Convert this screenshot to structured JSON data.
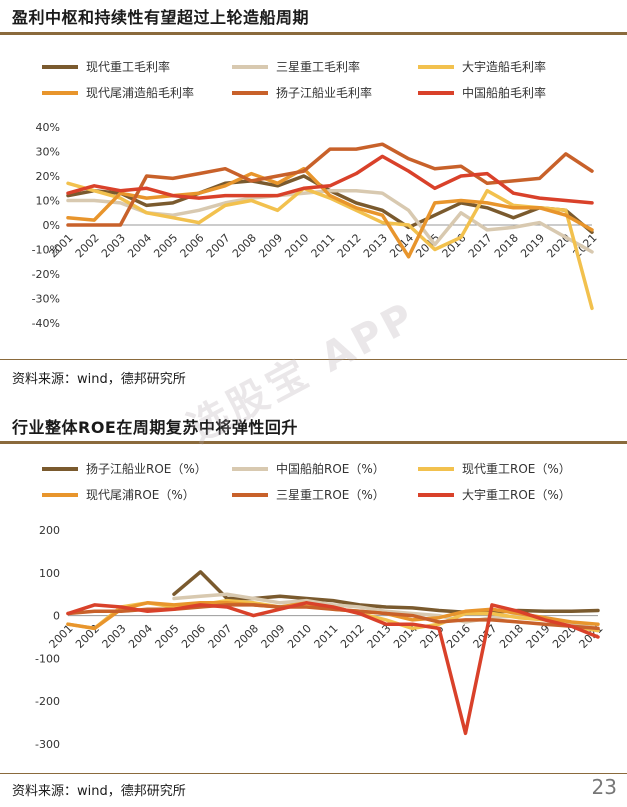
{
  "chart1": {
    "title": "盈利中枢和持续性有望超过上轮造船周期",
    "source": "资料来源：wind，德邦研究所"
  },
  "chart2": {
    "title": "行业整体ROE在周期复苏中将弹性回升",
    "source": "资料来源：wind，德邦研究所"
  },
  "watermark": "选股宝 APP",
  "page_number": "23",
  "chart_data": [
    {
      "type": "line",
      "title": "盈利中枢和持续性有望超过上轮造船周期",
      "xlabel": "",
      "ylabel": "",
      "x": [
        "2001",
        "2002",
        "2003",
        "2004",
        "2005",
        "2006",
        "2007",
        "2008",
        "2009",
        "2010",
        "2011",
        "2012",
        "2013",
        "2014",
        "2015",
        "2016",
        "2017",
        "2018",
        "2019",
        "2020",
        "2021"
      ],
      "ylim": [
        -40,
        40
      ],
      "yticks": [
        -40,
        -30,
        -20,
        -10,
        0,
        10,
        20,
        30,
        40
      ],
      "ytick_labels": [
        "-40%",
        "-30%",
        "-20%",
        "-10%",
        "0%",
        "10%",
        "20%",
        "30%",
        "40%"
      ],
      "legend_placement": "top",
      "series": [
        {
          "name": "现代重工毛利率",
          "color": "#7a5a2e",
          "values": [
            12,
            14,
            13,
            8,
            9,
            13,
            17,
            18,
            16,
            20,
            14,
            9,
            6,
            -1,
            4,
            9,
            7,
            3,
            7,
            6,
            -3
          ]
        },
        {
          "name": "三星重工毛利率",
          "color": "#d8c9b0",
          "values": [
            10,
            10,
            9,
            5,
            4,
            6,
            9,
            11,
            12,
            13,
            14,
            14,
            13,
            6,
            -8,
            5,
            -2,
            -1,
            1,
            -5,
            -11
          ]
        },
        {
          "name": "大宇造船毛利率",
          "color": "#f2c14e",
          "values": [
            17,
            14,
            11,
            5,
            3,
            1,
            8,
            10,
            6,
            15,
            11,
            6,
            1,
            0,
            -10,
            -5,
            14,
            8,
            7,
            6,
            -34
          ]
        },
        {
          "name": "现代尾浦造船毛利率",
          "color": "#e8952c",
          "values": [
            3,
            2,
            13,
            11,
            12,
            13,
            16,
            21,
            17,
            23,
            12,
            7,
            4,
            -13,
            9,
            10,
            9,
            7,
            7,
            4,
            -2
          ]
        },
        {
          "name": "扬子江船业毛利率",
          "color": "#c8612a",
          "values": [
            0,
            0,
            0,
            20,
            19,
            21,
            23,
            18,
            20,
            22,
            31,
            31,
            33,
            27,
            23,
            24,
            17,
            18,
            19,
            29,
            22
          ]
        },
        {
          "name": "中国船舶毛利率",
          "color": "#d9412a",
          "values": [
            13,
            16,
            14,
            15,
            12,
            11,
            12,
            12,
            12,
            15,
            16,
            21,
            28,
            22,
            15,
            20,
            21,
            13,
            11,
            10,
            9
          ]
        }
      ]
    },
    {
      "type": "line",
      "title": "行业整体ROE在周期复苏中将弹性回升",
      "xlabel": "",
      "ylabel": "",
      "x": [
        "2001",
        "2002",
        "2003",
        "2004",
        "2005",
        "2006",
        "2007",
        "2008",
        "2009",
        "2010",
        "2011",
        "2012",
        "2013",
        "2014",
        "2015",
        "2016",
        "2017",
        "2018",
        "2019",
        "2020",
        "2021"
      ],
      "ylim": [
        -300,
        200
      ],
      "yticks": [
        -300,
        -200,
        -100,
        0,
        100,
        200
      ],
      "ytick_labels": [
        "-300",
        "-200",
        "-100",
        "0",
        "100",
        "200"
      ],
      "legend_placement": "top",
      "series": [
        {
          "name": "扬子江船业ROE（%）",
          "color": "#7a5a2e",
          "values": [
            null,
            null,
            null,
            null,
            50,
            102,
            40,
            40,
            45,
            40,
            35,
            25,
            20,
            18,
            12,
            8,
            8,
            12,
            10,
            10,
            12
          ]
        },
        {
          "name": "中国船舶ROE（%）",
          "color": "#d8c9b0",
          "values": [
            null,
            null,
            null,
            null,
            40,
            45,
            50,
            40,
            30,
            35,
            25,
            20,
            10,
            5,
            0,
            -15,
            -5,
            0,
            -5,
            -20,
            -30
          ]
        },
        {
          "name": "现代重工ROE（%）",
          "color": "#f2c14e",
          "values": [
            -20,
            -30,
            20,
            30,
            20,
            25,
            35,
            30,
            20,
            25,
            20,
            5,
            -10,
            -30,
            -20,
            5,
            5,
            -5,
            -10,
            -25,
            -35
          ]
        },
        {
          "name": "现代尾浦ROE（%）",
          "color": "#e8952c",
          "values": [
            -20,
            -30,
            15,
            30,
            25,
            30,
            30,
            25,
            20,
            30,
            15,
            10,
            5,
            -10,
            -5,
            10,
            15,
            5,
            -5,
            -15,
            -20
          ]
        },
        {
          "name": "三星重工ROE（%）",
          "color": "#c8612a",
          "values": [
            5,
            10,
            10,
            15,
            15,
            20,
            25,
            25,
            20,
            20,
            15,
            10,
            5,
            0,
            -15,
            -10,
            -10,
            -15,
            -20,
            -25,
            -30
          ]
        },
        {
          "name": "大宇重工ROE（%）",
          "color": "#d9412a",
          "values": [
            5,
            25,
            20,
            10,
            15,
            25,
            20,
            0,
            15,
            30,
            20,
            5,
            -20,
            -20,
            -30,
            -275,
            25,
            10,
            -10,
            -25,
            -50
          ]
        }
      ]
    }
  ]
}
